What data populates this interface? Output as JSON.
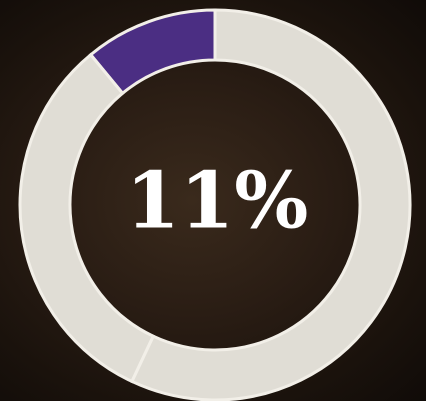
{
  "chart_data": {
    "type": "donut",
    "values": [
      11,
      32,
      57
    ],
    "value_labels": [
      "11%",
      null,
      null
    ],
    "colors": [
      "#4b2e83",
      "#e0ddd5",
      "#e0ddd5"
    ],
    "direction": "counterclockwise"
  }
}
